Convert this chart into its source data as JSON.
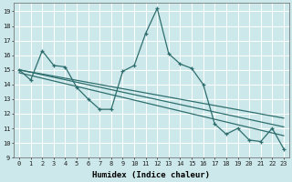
{
  "xlabel": "Humidex (Indice chaleur)",
  "bg_color": "#cce8ea",
  "grid_color": "#ffffff",
  "line_color": "#2e6e6e",
  "xlim": [
    -0.5,
    23.5
  ],
  "ylim": [
    9,
    19.6
  ],
  "yticks": [
    9,
    10,
    11,
    12,
    13,
    14,
    15,
    16,
    17,
    18,
    19
  ],
  "xticks": [
    0,
    1,
    2,
    3,
    4,
    5,
    6,
    7,
    8,
    9,
    10,
    11,
    12,
    13,
    14,
    15,
    16,
    17,
    18,
    19,
    20,
    21,
    22,
    23
  ],
  "series1_x": [
    0,
    1,
    2,
    3,
    4,
    5,
    6,
    7,
    8,
    9,
    10,
    11,
    12,
    13,
    14,
    15,
    16,
    17,
    18,
    19,
    20,
    21,
    22,
    23
  ],
  "series1_y": [
    15.0,
    14.3,
    16.3,
    15.3,
    15.2,
    13.8,
    13.0,
    12.3,
    12.3,
    14.9,
    15.3,
    17.5,
    19.2,
    16.1,
    15.4,
    15.1,
    14.0,
    11.3,
    10.6,
    11.0,
    10.2,
    10.1,
    11.0,
    9.6
  ],
  "series2_y_start": 15.0,
  "series2_y_end": 11.1,
  "series3_y_start": 14.8,
  "series3_y_end": 10.5,
  "series4_y_start": 15.0,
  "series4_y_end": 11.7,
  "lw": 0.9,
  "ms": 3.0,
  "tick_fontsize": 5.0,
  "xlabel_fontsize": 6.5
}
